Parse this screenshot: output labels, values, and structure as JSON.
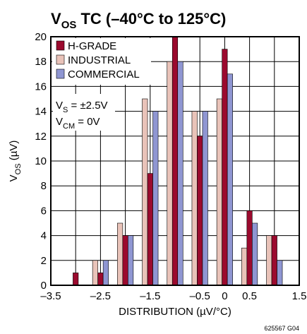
{
  "chart_data": {
    "type": "bar",
    "title": "V",
    "title_sub": "OS",
    "title_rest": " TC (–40°C to 125°C)",
    "ylabel_main": "V",
    "ylabel_sub": "OS",
    "ylabel_rest": " (µV)",
    "xlabel": "DISTRIBUTION (µV/°C)",
    "xlim": [
      -3.5,
      1.5
    ],
    "ylim": [
      0,
      20
    ],
    "xticks": [
      -3.5,
      -2.5,
      -1.5,
      -0.5,
      0,
      0.5,
      1.5
    ],
    "xtick_labels": [
      "–3.5",
      "–2.5",
      "–1.5",
      "–0.5",
      "0",
      "0.5",
      "1.5"
    ],
    "yticks": [
      0,
      2,
      4,
      6,
      8,
      10,
      12,
      14,
      16,
      18,
      20
    ],
    "ytick_labels": [
      "0",
      "2",
      "4",
      "6",
      "8",
      "10",
      "12",
      "14",
      "16",
      "18",
      "20"
    ],
    "grid": true,
    "legend_position": "top-left",
    "x": [
      -3.0,
      -2.5,
      -2.0,
      -1.5,
      -1.0,
      -0.5,
      0.0,
      0.5,
      1.0
    ],
    "series": [
      {
        "name": "H-GRADE",
        "color": "#9b0a2e",
        "values": [
          1,
          1,
          4,
          9,
          20,
          12,
          19,
          6,
          4
        ]
      },
      {
        "name": "INDUSTRIAL",
        "color": "#e9c3b9",
        "values": [
          0,
          2,
          5,
          15,
          18,
          14,
          15,
          3,
          4
        ]
      },
      {
        "name": "COMMERCIAL",
        "color": "#8f96d2",
        "values": [
          0,
          2,
          4,
          14,
          18,
          14,
          17,
          5,
          2
        ]
      }
    ],
    "annotations": {
      "vs_main": "V",
      "vs_sub": "S",
      "vs_rest": " = ±2.5V",
      "vcm_main": "V",
      "vcm_sub": "CM",
      "vcm_rest": " = 0V"
    },
    "figure_code": "625567 G04"
  }
}
